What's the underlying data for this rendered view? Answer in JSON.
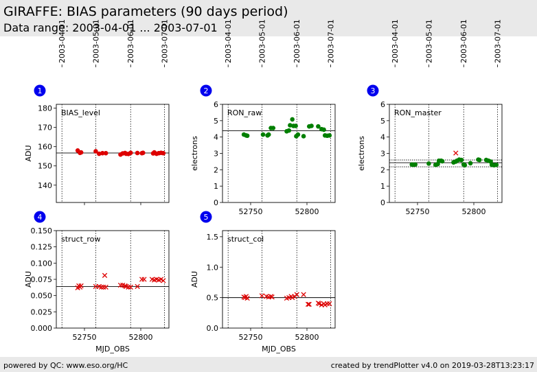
{
  "header": {
    "title": "GIRAFFE: BIAS parameters (90 days period)",
    "subtitle": "Data range: 2003-04-01 ... 2003-07-01"
  },
  "footer": {
    "left": "powered by QC: www.eso.org/HC",
    "right": "created by trendPlotter v4.0 on 2019-03-28T13:23:17"
  },
  "colors": {
    "red": "#dd0000",
    "green": "#007f00",
    "badge": "#0000ee"
  },
  "chart_data": [
    {
      "id": 1,
      "type": "scatter",
      "title": "BIAS_level",
      "ylabel": "ADU",
      "xlabel": "",
      "color": "red",
      "xlim": [
        52725,
        52825
      ],
      "ylim": [
        131,
        182
      ],
      "yticks": [
        140,
        150,
        160,
        170,
        180
      ],
      "xticks": [
        52750,
        52800
      ],
      "xtick_labels": false,
      "date_ticks": [
        "2003-04-01",
        "2003-05-01",
        "2003-06-01",
        "2003-07-01"
      ],
      "date_mjd": [
        52730,
        52760,
        52791,
        52821
      ],
      "hlines": [
        156.7
      ],
      "points": [
        {
          "x": 52744,
          "y": 158,
          "m": "o"
        },
        {
          "x": 52746,
          "y": 156.8,
          "m": "o"
        },
        {
          "x": 52747,
          "y": 157,
          "m": "o"
        },
        {
          "x": 52760,
          "y": 157.6,
          "m": "o"
        },
        {
          "x": 52763,
          "y": 156.3,
          "m": "o"
        },
        {
          "x": 52766,
          "y": 156.6,
          "m": "o"
        },
        {
          "x": 52769,
          "y": 156.6,
          "m": "o"
        },
        {
          "x": 52782,
          "y": 155.9,
          "m": "o"
        },
        {
          "x": 52784,
          "y": 156.5,
          "m": "o"
        },
        {
          "x": 52786,
          "y": 156.7,
          "m": "o"
        },
        {
          "x": 52787,
          "y": 156.3,
          "m": "o"
        },
        {
          "x": 52789,
          "y": 156.2,
          "m": "o"
        },
        {
          "x": 52791,
          "y": 156.8,
          "m": "o"
        },
        {
          "x": 52797,
          "y": 156.7,
          "m": "o"
        },
        {
          "x": 52801,
          "y": 156.6,
          "m": "o"
        },
        {
          "x": 52802,
          "y": 156.8,
          "m": "o"
        },
        {
          "x": 52811,
          "y": 156.5,
          "m": "o"
        },
        {
          "x": 52812,
          "y": 157,
          "m": "o"
        },
        {
          "x": 52814,
          "y": 156.3,
          "m": "o"
        },
        {
          "x": 52816,
          "y": 156.6,
          "m": "o"
        },
        {
          "x": 52818,
          "y": 156.8,
          "m": "o"
        },
        {
          "x": 52820,
          "y": 156.6,
          "m": "o"
        }
      ]
    },
    {
      "id": 2,
      "type": "scatter",
      "title": "RON_raw",
      "ylabel": "electrons",
      "xlabel": "",
      "color": "green",
      "xlim": [
        52725,
        52825
      ],
      "ylim": [
        0,
        6
      ],
      "yticks": [
        0,
        1,
        2,
        3,
        4,
        5,
        6
      ],
      "xticks": [
        52750,
        52800
      ],
      "xtick_labels": true,
      "date_ticks": [
        "2003-04-01",
        "2003-05-01",
        "2003-06-01",
        "2003-07-01"
      ],
      "date_mjd": [
        52730,
        52760,
        52791,
        52821
      ],
      "hlines": [
        4.38
      ],
      "points": [
        {
          "x": 52744,
          "y": 4.15,
          "m": "o"
        },
        {
          "x": 52746,
          "y": 4.1,
          "m": "o"
        },
        {
          "x": 52747,
          "y": 4.08,
          "m": "o"
        },
        {
          "x": 52761,
          "y": 4.15,
          "m": "o"
        },
        {
          "x": 52765,
          "y": 4.1,
          "m": "o"
        },
        {
          "x": 52766,
          "y": 4.15,
          "m": "o"
        },
        {
          "x": 52768,
          "y": 4.55,
          "m": "o"
        },
        {
          "x": 52770,
          "y": 4.55,
          "m": "o"
        },
        {
          "x": 52782,
          "y": 4.35,
          "m": "o"
        },
        {
          "x": 52784,
          "y": 4.4,
          "m": "o"
        },
        {
          "x": 52785,
          "y": 4.72,
          "m": "o"
        },
        {
          "x": 52787,
          "y": 5.08,
          "m": "o"
        },
        {
          "x": 52788,
          "y": 4.68,
          "m": "o"
        },
        {
          "x": 52790,
          "y": 4.68,
          "m": "o"
        },
        {
          "x": 52790.5,
          "y": 4.05,
          "m": "o"
        },
        {
          "x": 52792,
          "y": 4.15,
          "m": "o"
        },
        {
          "x": 52797,
          "y": 4.05,
          "m": "o"
        },
        {
          "x": 52802,
          "y": 4.65,
          "m": "o"
        },
        {
          "x": 52804,
          "y": 4.68,
          "m": "o"
        },
        {
          "x": 52810,
          "y": 4.65,
          "m": "o"
        },
        {
          "x": 52813,
          "y": 4.48,
          "m": "o"
        },
        {
          "x": 52815,
          "y": 4.45,
          "m": "o"
        },
        {
          "x": 52816,
          "y": 4.1,
          "m": "o"
        },
        {
          "x": 52818,
          "y": 4.08,
          "m": "o"
        },
        {
          "x": 52820,
          "y": 4.1,
          "m": "o"
        }
      ]
    },
    {
      "id": 3,
      "type": "scatter",
      "title": "RON_master",
      "ylabel": "electrons",
      "xlabel": "",
      "color": "green",
      "xlim": [
        52725,
        52825
      ],
      "ylim": [
        0,
        6
      ],
      "yticks": [
        0,
        1,
        2,
        3,
        4,
        5,
        6
      ],
      "xticks": [
        52750,
        52800
      ],
      "xtick_labels": true,
      "date_ticks": [
        "2003-04-01",
        "2003-05-01",
        "2003-06-01",
        "2003-07-01"
      ],
      "date_mjd": [
        52730,
        52760,
        52791,
        52821
      ],
      "hlines": [
        2.6,
        2.43,
        2.18
      ],
      "points": [
        {
          "x": 52745,
          "y": 2.32,
          "m": "o"
        },
        {
          "x": 52746,
          "y": 2.3,
          "m": "o"
        },
        {
          "x": 52748,
          "y": 2.32,
          "m": "o"
        },
        {
          "x": 52760,
          "y": 2.38,
          "m": "o"
        },
        {
          "x": 52766,
          "y": 2.3,
          "m": "o"
        },
        {
          "x": 52768,
          "y": 2.35,
          "m": "o"
        },
        {
          "x": 52769,
          "y": 2.55,
          "m": "o"
        },
        {
          "x": 52771,
          "y": 2.55,
          "m": "o"
        },
        {
          "x": 52772,
          "y": 2.52,
          "m": "o"
        },
        {
          "x": 52782,
          "y": 2.45,
          "m": "o"
        },
        {
          "x": 52784,
          "y": 2.5,
          "m": "o"
        },
        {
          "x": 52785,
          "y": 2.55,
          "m": "o"
        },
        {
          "x": 52787,
          "y": 2.62,
          "m": "o"
        },
        {
          "x": 52789,
          "y": 2.6,
          "m": "o"
        },
        {
          "x": 52791,
          "y": 2.32,
          "m": "o"
        },
        {
          "x": 52792,
          "y": 2.28,
          "m": "o"
        },
        {
          "x": 52797,
          "y": 2.4,
          "m": "o"
        },
        {
          "x": 52804,
          "y": 2.62,
          "m": "o"
        },
        {
          "x": 52805,
          "y": 2.6,
          "m": "o"
        },
        {
          "x": 52811,
          "y": 2.6,
          "m": "o"
        },
        {
          "x": 52813,
          "y": 2.55,
          "m": "o"
        },
        {
          "x": 52815,
          "y": 2.5,
          "m": "o"
        },
        {
          "x": 52816,
          "y": 2.3,
          "m": "o"
        },
        {
          "x": 52818,
          "y": 2.28,
          "m": "o"
        },
        {
          "x": 52820,
          "y": 2.3,
          "m": "o"
        },
        {
          "x": 52784,
          "y": 3.02,
          "m": "x",
          "c": "red"
        }
      ]
    },
    {
      "id": 4,
      "type": "scatter",
      "title": "struct_row",
      "ylabel": "ADU",
      "xlabel": "MJD_OBS",
      "color": "red",
      "xlim": [
        52725,
        52825
      ],
      "ylim": [
        0,
        0.15
      ],
      "yticks": [
        0,
        0.025,
        0.05,
        0.075,
        0.1,
        0.125,
        0.15
      ],
      "ytick_labels": [
        "0.000",
        "0.025",
        "0.050",
        "0.075",
        "0.100",
        "0.125",
        "0.150"
      ],
      "xticks": [
        52750,
        52800
      ],
      "xtick_labels": true,
      "date_mjd": [
        52730,
        52760,
        52791,
        52821
      ],
      "hlines": [
        0.064
      ],
      "points": [
        {
          "x": 52744,
          "y": 0.062,
          "m": "x"
        },
        {
          "x": 52745,
          "y": 0.065,
          "m": "x"
        },
        {
          "x": 52746,
          "y": 0.063,
          "m": "x"
        },
        {
          "x": 52747,
          "y": 0.065,
          "m": "x"
        },
        {
          "x": 52760,
          "y": 0.064,
          "m": "x"
        },
        {
          "x": 52763,
          "y": 0.064,
          "m": "x"
        },
        {
          "x": 52765,
          "y": 0.063,
          "m": "x"
        },
        {
          "x": 52767,
          "y": 0.063,
          "m": "x"
        },
        {
          "x": 52768,
          "y": 0.081,
          "m": "x"
        },
        {
          "x": 52769,
          "y": 0.063,
          "m": "x"
        },
        {
          "x": 52782,
          "y": 0.066,
          "m": "x"
        },
        {
          "x": 52784,
          "y": 0.066,
          "m": "x"
        },
        {
          "x": 52786,
          "y": 0.065,
          "m": "x"
        },
        {
          "x": 52787,
          "y": 0.064,
          "m": "x"
        },
        {
          "x": 52789,
          "y": 0.063,
          "m": "x"
        },
        {
          "x": 52791,
          "y": 0.063,
          "m": "x"
        },
        {
          "x": 52797,
          "y": 0.064,
          "m": "x"
        },
        {
          "x": 52801,
          "y": 0.075,
          "m": "x"
        },
        {
          "x": 52803,
          "y": 0.075,
          "m": "x"
        },
        {
          "x": 52810,
          "y": 0.075,
          "m": "x"
        },
        {
          "x": 52812,
          "y": 0.074,
          "m": "x"
        },
        {
          "x": 52814,
          "y": 0.075,
          "m": "x"
        },
        {
          "x": 52816,
          "y": 0.074,
          "m": "x"
        },
        {
          "x": 52818,
          "y": 0.075,
          "m": "x"
        },
        {
          "x": 52820,
          "y": 0.073,
          "m": "x"
        }
      ]
    },
    {
      "id": 5,
      "type": "scatter",
      "title": "struct_col",
      "ylabel": "ADU",
      "xlabel": "MJD_OBS",
      "color": "red",
      "xlim": [
        52725,
        52825
      ],
      "ylim": [
        0,
        1.6
      ],
      "yticks": [
        0,
        0.5,
        1.0,
        1.5
      ],
      "ytick_labels": [
        "0.0",
        "0.5",
        "1.0",
        "1.5"
      ],
      "xticks": [
        52750,
        52800
      ],
      "xtick_labels": true,
      "date_mjd": [
        52730,
        52760,
        52791,
        52821
      ],
      "hlines": [
        0.5
      ],
      "points": [
        {
          "x": 52744,
          "y": 0.51,
          "m": "x"
        },
        {
          "x": 52745,
          "y": 0.5,
          "m": "x"
        },
        {
          "x": 52746,
          "y": 0.52,
          "m": "x"
        },
        {
          "x": 52747,
          "y": 0.49,
          "m": "x"
        },
        {
          "x": 52760,
          "y": 0.53,
          "m": "x"
        },
        {
          "x": 52764,
          "y": 0.52,
          "m": "x"
        },
        {
          "x": 52766,
          "y": 0.51,
          "m": "x"
        },
        {
          "x": 52768,
          "y": 0.52,
          "m": "x"
        },
        {
          "x": 52769,
          "y": 0.51,
          "m": "x"
        },
        {
          "x": 52782,
          "y": 0.49,
          "m": "x"
        },
        {
          "x": 52784,
          "y": 0.5,
          "m": "x"
        },
        {
          "x": 52786,
          "y": 0.52,
          "m": "x"
        },
        {
          "x": 52787,
          "y": 0.5,
          "m": "x"
        },
        {
          "x": 52789,
          "y": 0.52,
          "m": "x"
        },
        {
          "x": 52791,
          "y": 0.55,
          "m": "x"
        },
        {
          "x": 52797,
          "y": 0.55,
          "m": "x"
        },
        {
          "x": 52801,
          "y": 0.39,
          "m": "x"
        },
        {
          "x": 52802,
          "y": 0.39,
          "m": "x"
        },
        {
          "x": 52810,
          "y": 0.41,
          "m": "x"
        },
        {
          "x": 52811,
          "y": 0.4,
          "m": "x"
        },
        {
          "x": 52813,
          "y": 0.38,
          "m": "x"
        },
        {
          "x": 52815,
          "y": 0.4,
          "m": "x"
        },
        {
          "x": 52816,
          "y": 0.38,
          "m": "x"
        },
        {
          "x": 52818,
          "y": 0.4,
          "m": "x"
        },
        {
          "x": 52820,
          "y": 0.4,
          "m": "x"
        }
      ]
    }
  ]
}
